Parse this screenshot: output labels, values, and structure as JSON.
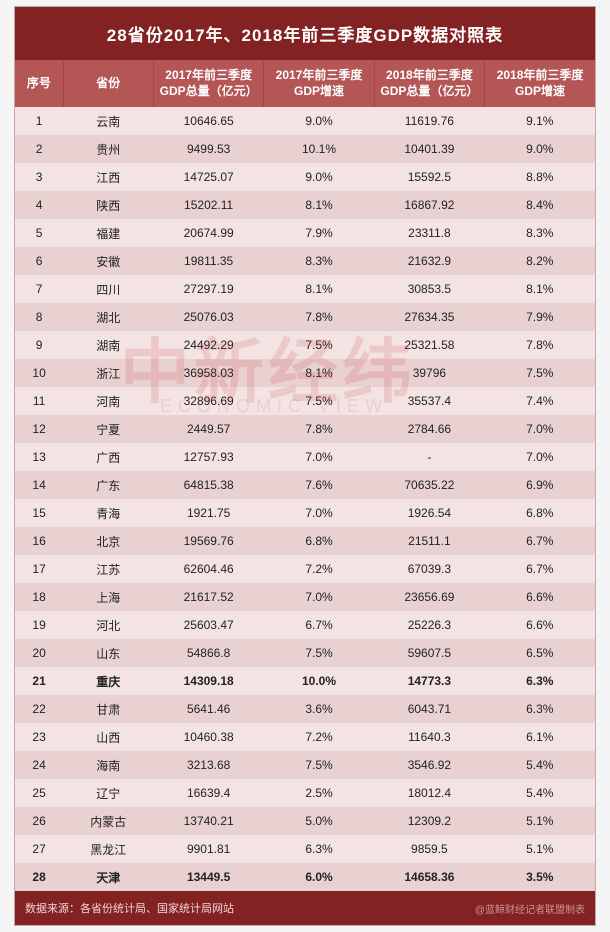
{
  "title": "28省份2017年、2018年前三季度GDP数据对照表",
  "columns": [
    "序号",
    "省份",
    "2017年前三季度\nGDP总量（亿元）",
    "2017年前三季度\nGDP增速",
    "2018年前三季度\nGDP总量（亿元）",
    "2018年前三季度\nGDP增速"
  ],
  "colors": {
    "title_bg": "#832223",
    "header_bg": "#b45556",
    "row_odd": "#f3e3e3",
    "row_even": "#e9d1d1",
    "text": "#222222",
    "header_text": "#ffffff",
    "watermark": "rgba(200,50,50,0.15)"
  },
  "bold_rows": [
    21,
    28
  ],
  "rows": [
    {
      "idx": 1,
      "prov": "云南",
      "g17": "10646.65",
      "r17": "9.0%",
      "g18": "11619.76",
      "r18": "9.1%"
    },
    {
      "idx": 2,
      "prov": "贵州",
      "g17": "9499.53",
      "r17": "10.1%",
      "g18": "10401.39",
      "r18": "9.0%"
    },
    {
      "idx": 3,
      "prov": "江西",
      "g17": "14725.07",
      "r17": "9.0%",
      "g18": "15592.5",
      "r18": "8.8%"
    },
    {
      "idx": 4,
      "prov": "陕西",
      "g17": "15202.11",
      "r17": "8.1%",
      "g18": "16867.92",
      "r18": "8.4%"
    },
    {
      "idx": 5,
      "prov": "福建",
      "g17": "20674.99",
      "r17": "7.9%",
      "g18": "23311.8",
      "r18": "8.3%"
    },
    {
      "idx": 6,
      "prov": "安徽",
      "g17": "19811.35",
      "r17": "8.3%",
      "g18": "21632.9",
      "r18": "8.2%"
    },
    {
      "idx": 7,
      "prov": "四川",
      "g17": "27297.19",
      "r17": "8.1%",
      "g18": "30853.5",
      "r18": "8.1%"
    },
    {
      "idx": 8,
      "prov": "湖北",
      "g17": "25076.03",
      "r17": "7.8%",
      "g18": "27634.35",
      "r18": "7.9%"
    },
    {
      "idx": 9,
      "prov": "湖南",
      "g17": "24492.29",
      "r17": "7.5%",
      "g18": "25321.58",
      "r18": "7.8%"
    },
    {
      "idx": 10,
      "prov": "浙江",
      "g17": "36958.03",
      "r17": "8.1%",
      "g18": "39796",
      "r18": "7.5%"
    },
    {
      "idx": 11,
      "prov": "河南",
      "g17": "32896.69",
      "r17": "7.5%",
      "g18": "35537.4",
      "r18": "7.4%"
    },
    {
      "idx": 12,
      "prov": "宁夏",
      "g17": "2449.57",
      "r17": "7.8%",
      "g18": "2784.66",
      "r18": "7.0%"
    },
    {
      "idx": 13,
      "prov": "广西",
      "g17": "12757.93",
      "r17": "7.0%",
      "g18": "-",
      "r18": "7.0%"
    },
    {
      "idx": 14,
      "prov": "广东",
      "g17": "64815.38",
      "r17": "7.6%",
      "g18": "70635.22",
      "r18": "6.9%"
    },
    {
      "idx": 15,
      "prov": "青海",
      "g17": "1921.75",
      "r17": "7.0%",
      "g18": "1926.54",
      "r18": "6.8%"
    },
    {
      "idx": 16,
      "prov": "北京",
      "g17": "19569.76",
      "r17": "6.8%",
      "g18": "21511.1",
      "r18": "6.7%"
    },
    {
      "idx": 17,
      "prov": "江苏",
      "g17": "62604.46",
      "r17": "7.2%",
      "g18": "67039.3",
      "r18": "6.7%"
    },
    {
      "idx": 18,
      "prov": "上海",
      "g17": "21617.52",
      "r17": "7.0%",
      "g18": "23656.69",
      "r18": "6.6%"
    },
    {
      "idx": 19,
      "prov": "河北",
      "g17": "25603.47",
      "r17": "6.7%",
      "g18": "25226.3",
      "r18": "6.6%"
    },
    {
      "idx": 20,
      "prov": "山东",
      "g17": "54866.8",
      "r17": "7.5%",
      "g18": "59607.5",
      "r18": "6.5%"
    },
    {
      "idx": 21,
      "prov": "重庆",
      "g17": "14309.18",
      "r17": "10.0%",
      "g18": "14773.3",
      "r18": "6.3%"
    },
    {
      "idx": 22,
      "prov": "甘肃",
      "g17": "5641.46",
      "r17": "3.6%",
      "g18": "6043.71",
      "r18": "6.3%"
    },
    {
      "idx": 23,
      "prov": "山西",
      "g17": "10460.38",
      "r17": "7.2%",
      "g18": "11640.3",
      "r18": "6.1%"
    },
    {
      "idx": 24,
      "prov": "海南",
      "g17": "3213.68",
      "r17": "7.5%",
      "g18": "3546.92",
      "r18": "5.4%"
    },
    {
      "idx": 25,
      "prov": "辽宁",
      "g17": "16639.4",
      "r17": "2.5%",
      "g18": "18012.4",
      "r18": "5.4%"
    },
    {
      "idx": 26,
      "prov": "内蒙古",
      "g17": "13740.21",
      "r17": "5.0%",
      "g18": "12309.2",
      "r18": "5.1%"
    },
    {
      "idx": 27,
      "prov": "黑龙江",
      "g17": "9901.81",
      "r17": "6.3%",
      "g18": "9859.5",
      "r18": "5.1%"
    },
    {
      "idx": 28,
      "prov": "天津",
      "g17": "13449.5",
      "r17": "6.0%",
      "g18": "14658.36",
      "r18": "3.5%"
    }
  ],
  "footer_left": "数据来源：各省份统计局、国家统计局网站",
  "footer_right": "@蓝鲸财经记者联盟制表",
  "watermark": "中新经纬",
  "watermark_sub": "ECONOMIC VIEW"
}
